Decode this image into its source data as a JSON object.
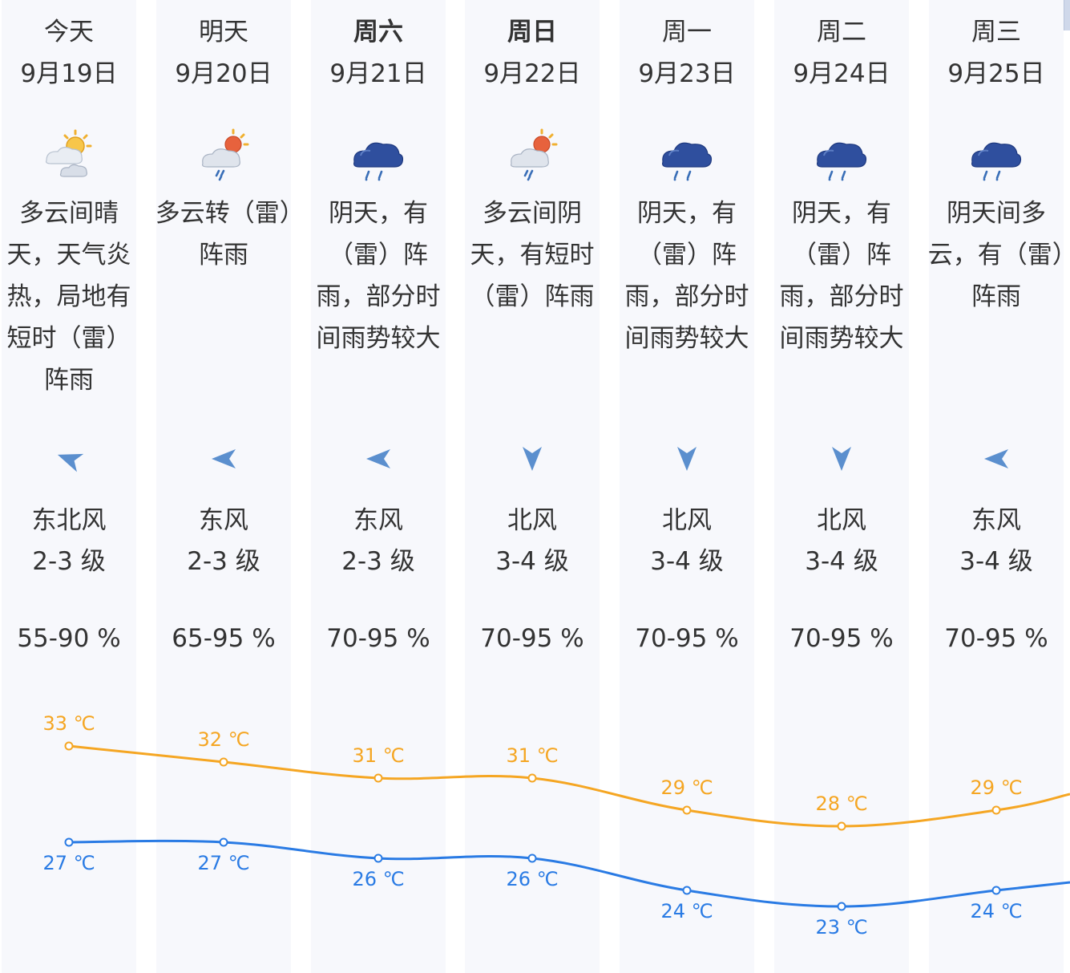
{
  "colors": {
    "column_bg": "#f7f8fc",
    "text": "#333333",
    "high_line": "#f5a623",
    "low_line": "#2a7be4",
    "wind_arrow": "#5b8fce"
  },
  "days": [
    {
      "dow": "今天",
      "date": "9月19日",
      "bold": false,
      "icon": "partly-sunny-cloudy-icon",
      "desc": "多云间晴天，天气炎热，局地有短时（雷）阵雨",
      "wind_icon": "wind-arrow-northeast-icon",
      "wind_angle": 200,
      "wind": "东北风",
      "wind_level": "2-3 级",
      "humidity": "55-90 %",
      "high": 33,
      "low": 27
    },
    {
      "dow": "明天",
      "date": "9月20日",
      "bold": false,
      "icon": "cloudy-sun-shower-icon",
      "desc": "多云转（雷）阵雨",
      "wind_icon": "wind-arrow-east-icon",
      "wind_angle": 180,
      "wind": "东风",
      "wind_level": "2-3 级",
      "humidity": "65-95 %",
      "high": 32,
      "low": 27
    },
    {
      "dow": "周六",
      "date": "9月21日",
      "bold": true,
      "icon": "overcast-rain-icon",
      "desc": "阴天，有（雷）阵雨，部分时间雨势较大",
      "wind_icon": "wind-arrow-east-icon",
      "wind_angle": 180,
      "wind": "东风",
      "wind_level": "2-3 级",
      "humidity": "70-95 %",
      "high": 31,
      "low": 26
    },
    {
      "dow": "周日",
      "date": "9月22日",
      "bold": true,
      "icon": "cloudy-sun-shower-icon",
      "desc": "多云间阴天，有短时（雷）阵雨",
      "wind_icon": "wind-arrow-north-icon",
      "wind_angle": 90,
      "wind": "北风",
      "wind_level": "3-4 级",
      "humidity": "70-95 %",
      "high": 31,
      "low": 26
    },
    {
      "dow": "周一",
      "date": "9月23日",
      "bold": false,
      "icon": "overcast-rain-icon",
      "desc": "阴天，有（雷）阵雨，部分时间雨势较大",
      "wind_icon": "wind-arrow-north-icon",
      "wind_angle": 90,
      "wind": "北风",
      "wind_level": "3-4 级",
      "humidity": "70-95 %",
      "high": 29,
      "low": 24
    },
    {
      "dow": "周二",
      "date": "9月24日",
      "bold": false,
      "icon": "overcast-rain-icon",
      "desc": "阴天，有（雷）阵雨，部分时间雨势较大",
      "wind_icon": "wind-arrow-north-icon",
      "wind_angle": 90,
      "wind": "北风",
      "wind_level": "3-4 级",
      "humidity": "70-95 %",
      "high": 28,
      "low": 23
    },
    {
      "dow": "周三",
      "date": "9月25日",
      "bold": false,
      "icon": "overcast-rain-icon",
      "desc": "阴天间多云，有（雷）阵雨",
      "wind_icon": "wind-arrow-east-icon",
      "wind_angle": 180,
      "wind": "东风",
      "wind_level": "3-4 级",
      "humidity": "70-95 %",
      "high": 29,
      "low": 24
    }
  ],
  "temp_unit": "℃"
}
